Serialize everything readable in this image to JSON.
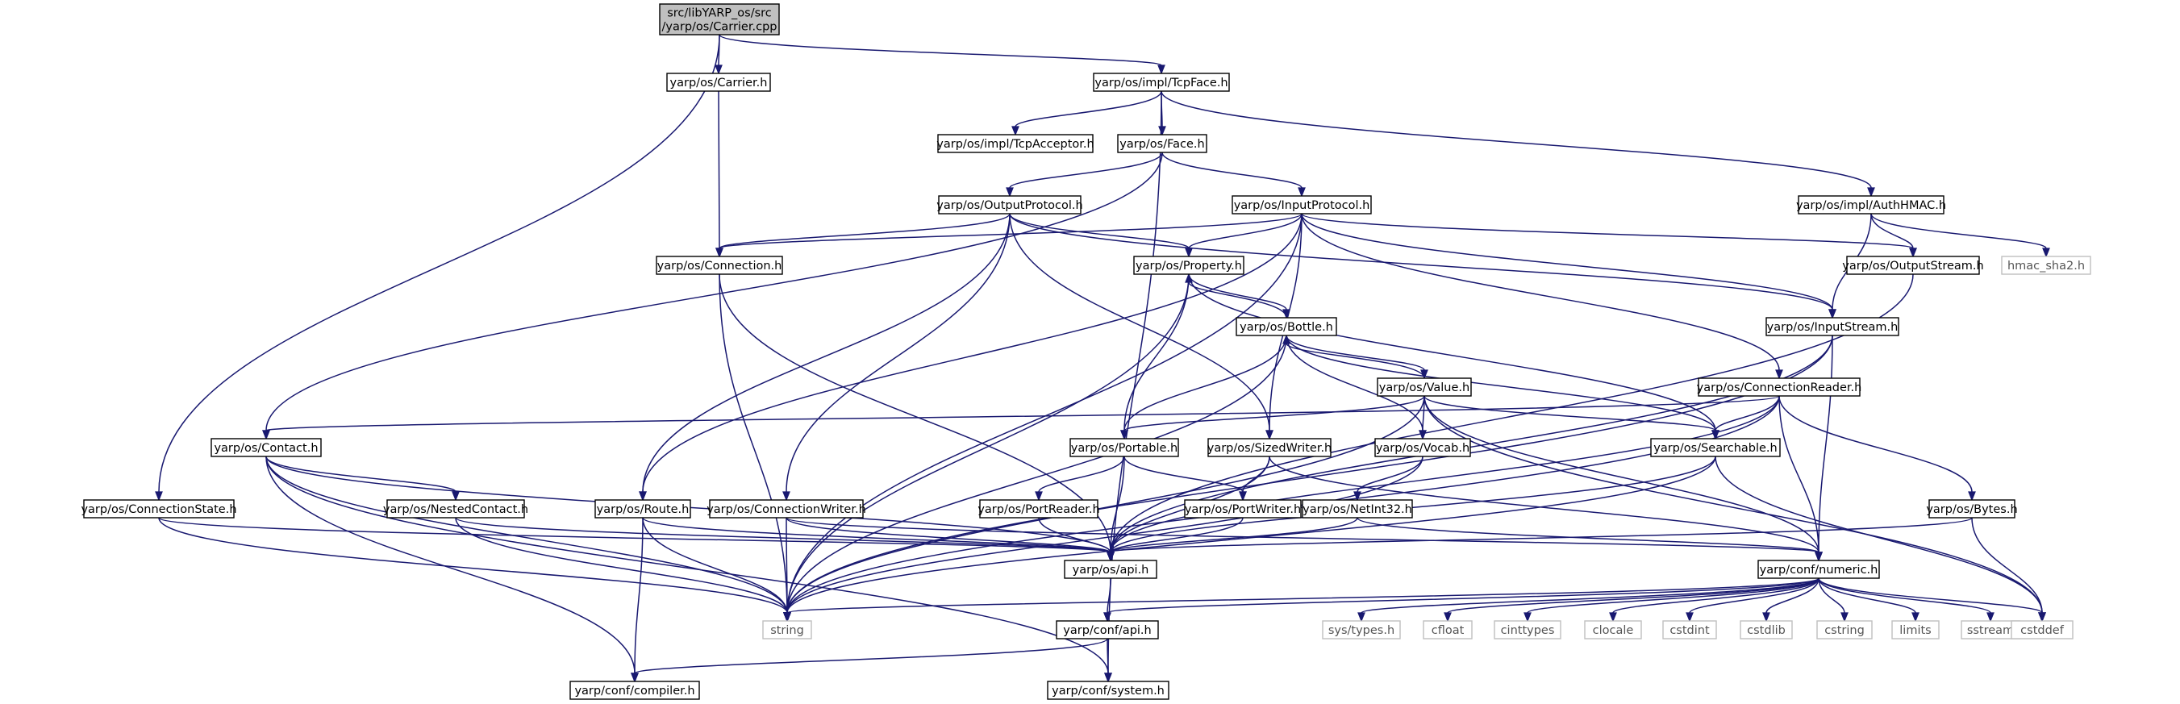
{
  "graph": {
    "nodes": [
      {
        "id": "root",
        "lines": [
          "src/libYARP_os/src",
          "/yarp/os/Carrier.cpp"
        ],
        "kind": "root"
      },
      {
        "id": "carrier_h",
        "lines": [
          "yarp/os/Carrier.h"
        ],
        "kind": "normal"
      },
      {
        "id": "tcpface",
        "lines": [
          "yarp/os/impl/TcpFace.h"
        ],
        "kind": "normal"
      },
      {
        "id": "tcpacceptor",
        "lines": [
          "yarp/os/impl/TcpAcceptor.h"
        ],
        "kind": "normal"
      },
      {
        "id": "face",
        "lines": [
          "yarp/os/Face.h"
        ],
        "kind": "normal"
      },
      {
        "id": "authhmac",
        "lines": [
          "yarp/os/impl/AuthHMAC.h"
        ],
        "kind": "normal"
      },
      {
        "id": "outputprotocol",
        "lines": [
          "yarp/os/OutputProtocol.h"
        ],
        "kind": "normal"
      },
      {
        "id": "inputprotocol",
        "lines": [
          "yarp/os/InputProtocol.h"
        ],
        "kind": "normal"
      },
      {
        "id": "connection",
        "lines": [
          "yarp/os/Connection.h"
        ],
        "kind": "normal"
      },
      {
        "id": "property",
        "lines": [
          "yarp/os/Property.h"
        ],
        "kind": "normal"
      },
      {
        "id": "outputstream",
        "lines": [
          "yarp/os/OutputStream.h"
        ],
        "kind": "normal"
      },
      {
        "id": "hmac",
        "lines": [
          "hmac_sha2.h"
        ],
        "kind": "ext"
      },
      {
        "id": "bottle",
        "lines": [
          "yarp/os/Bottle.h"
        ],
        "kind": "normal"
      },
      {
        "id": "inputstream",
        "lines": [
          "yarp/os/InputStream.h"
        ],
        "kind": "normal"
      },
      {
        "id": "value",
        "lines": [
          "yarp/os/Value.h"
        ],
        "kind": "normal"
      },
      {
        "id": "connreader",
        "lines": [
          "yarp/os/ConnectionReader.h"
        ],
        "kind": "normal"
      },
      {
        "id": "contact",
        "lines": [
          "yarp/os/Contact.h"
        ],
        "kind": "normal"
      },
      {
        "id": "portable",
        "lines": [
          "yarp/os/Portable.h"
        ],
        "kind": "normal"
      },
      {
        "id": "sizedwriter",
        "lines": [
          "yarp/os/SizedWriter.h"
        ],
        "kind": "normal"
      },
      {
        "id": "vocab",
        "lines": [
          "yarp/os/Vocab.h"
        ],
        "kind": "normal"
      },
      {
        "id": "searchable",
        "lines": [
          "yarp/os/Searchable.h"
        ],
        "kind": "normal"
      },
      {
        "id": "connstate",
        "lines": [
          "yarp/os/ConnectionState.h"
        ],
        "kind": "normal"
      },
      {
        "id": "nestedcontact",
        "lines": [
          "yarp/os/NestedContact.h"
        ],
        "kind": "normal"
      },
      {
        "id": "route",
        "lines": [
          "yarp/os/Route.h"
        ],
        "kind": "normal"
      },
      {
        "id": "connwriter",
        "lines": [
          "yarp/os/ConnectionWriter.h"
        ],
        "kind": "normal"
      },
      {
        "id": "portreader",
        "lines": [
          "yarp/os/PortReader.h"
        ],
        "kind": "normal"
      },
      {
        "id": "portwriter",
        "lines": [
          "yarp/os/PortWriter.h"
        ],
        "kind": "normal"
      },
      {
        "id": "netint32",
        "lines": [
          "yarp/os/NetInt32.h"
        ],
        "kind": "normal"
      },
      {
        "id": "bytes",
        "lines": [
          "yarp/os/Bytes.h"
        ],
        "kind": "normal"
      },
      {
        "id": "api_os",
        "lines": [
          "yarp/os/api.h"
        ],
        "kind": "normal"
      },
      {
        "id": "numeric",
        "lines": [
          "yarp/conf/numeric.h"
        ],
        "kind": "normal"
      },
      {
        "id": "string",
        "lines": [
          "string"
        ],
        "kind": "ext"
      },
      {
        "id": "conf_api",
        "lines": [
          "yarp/conf/api.h"
        ],
        "kind": "normal"
      },
      {
        "id": "systypes",
        "lines": [
          "sys/types.h"
        ],
        "kind": "ext"
      },
      {
        "id": "cfloat",
        "lines": [
          "cfloat"
        ],
        "kind": "ext"
      },
      {
        "id": "cinttypes",
        "lines": [
          "cinttypes"
        ],
        "kind": "ext"
      },
      {
        "id": "clocale",
        "lines": [
          "clocale"
        ],
        "kind": "ext"
      },
      {
        "id": "cstdint",
        "lines": [
          "cstdint"
        ],
        "kind": "ext"
      },
      {
        "id": "cstdlib",
        "lines": [
          "cstdlib"
        ],
        "kind": "ext"
      },
      {
        "id": "cstring",
        "lines": [
          "cstring"
        ],
        "kind": "ext"
      },
      {
        "id": "limits",
        "lines": [
          "limits"
        ],
        "kind": "ext"
      },
      {
        "id": "sstream",
        "lines": [
          "sstream"
        ],
        "kind": "ext"
      },
      {
        "id": "cstddef",
        "lines": [
          "cstddef"
        ],
        "kind": "ext"
      },
      {
        "id": "compiler",
        "lines": [
          "yarp/conf/compiler.h"
        ],
        "kind": "normal"
      },
      {
        "id": "system",
        "lines": [
          "yarp/conf/system.h"
        ],
        "kind": "normal"
      }
    ],
    "edges": [
      [
        "root",
        "carrier_h"
      ],
      [
        "root",
        "tcpface"
      ],
      [
        "root",
        "connstate"
      ],
      [
        "carrier_h",
        "connection"
      ],
      [
        "tcpface",
        "tcpacceptor"
      ],
      [
        "tcpface",
        "face"
      ],
      [
        "tcpface",
        "authhmac"
      ],
      [
        "tcpface",
        "system"
      ],
      [
        "face",
        "outputprotocol"
      ],
      [
        "face",
        "inputprotocol"
      ],
      [
        "face",
        "contact"
      ],
      [
        "outputprotocol",
        "connection"
      ],
      [
        "outputprotocol",
        "property"
      ],
      [
        "outputprotocol",
        "inputstream"
      ],
      [
        "outputprotocol",
        "sizedwriter"
      ],
      [
        "outputprotocol",
        "connwriter"
      ],
      [
        "outputprotocol",
        "route"
      ],
      [
        "inputprotocol",
        "connection"
      ],
      [
        "inputprotocol",
        "property"
      ],
      [
        "inputprotocol",
        "outputstream"
      ],
      [
        "inputprotocol",
        "inputstream"
      ],
      [
        "inputprotocol",
        "connreader"
      ],
      [
        "inputprotocol",
        "route"
      ],
      [
        "inputprotocol",
        "sizedwriter"
      ],
      [
        "inputprotocol",
        "string"
      ],
      [
        "authhmac",
        "outputstream"
      ],
      [
        "authhmac",
        "inputstream"
      ],
      [
        "authhmac",
        "hmac"
      ],
      [
        "connection",
        "api_os"
      ],
      [
        "connection",
        "string"
      ],
      [
        "property",
        "bottle"
      ],
      [
        "property",
        "portable"
      ],
      [
        "property",
        "searchable"
      ],
      [
        "property",
        "string"
      ],
      [
        "bottle",
        "property"
      ],
      [
        "bottle",
        "value"
      ],
      [
        "bottle",
        "portable"
      ],
      [
        "bottle",
        "searchable"
      ],
      [
        "bottle",
        "vocab"
      ],
      [
        "bottle",
        "string"
      ],
      [
        "value",
        "bottle"
      ],
      [
        "value",
        "portable"
      ],
      [
        "value",
        "searchable"
      ],
      [
        "value",
        "vocab"
      ],
      [
        "value",
        "numeric"
      ],
      [
        "value",
        "string"
      ],
      [
        "value",
        "cstddef"
      ],
      [
        "outputstream",
        "api_os"
      ],
      [
        "inputstream",
        "api_os"
      ],
      [
        "inputstream",
        "string"
      ],
      [
        "inputstream",
        "numeric"
      ],
      [
        "connreader",
        "contact"
      ],
      [
        "connreader",
        "searchable"
      ],
      [
        "connreader",
        "bytes"
      ],
      [
        "connreader",
        "api_os"
      ],
      [
        "connreader",
        "string"
      ],
      [
        "connreader",
        "numeric"
      ],
      [
        "contact",
        "nestedcontact"
      ],
      [
        "contact",
        "api_os"
      ],
      [
        "contact",
        "string"
      ],
      [
        "contact",
        "compiler"
      ],
      [
        "contact",
        "system"
      ],
      [
        "portable",
        "portreader"
      ],
      [
        "portable",
        "portwriter"
      ],
      [
        "portable",
        "api_os"
      ],
      [
        "sizedwriter",
        "portwriter"
      ],
      [
        "sizedwriter",
        "api_os"
      ],
      [
        "sizedwriter",
        "numeric"
      ],
      [
        "vocab",
        "netint32"
      ],
      [
        "vocab",
        "string"
      ],
      [
        "searchable",
        "api_os"
      ],
      [
        "searchable",
        "string"
      ],
      [
        "searchable",
        "cstddef"
      ],
      [
        "connstate",
        "api_os"
      ],
      [
        "connstate",
        "string"
      ],
      [
        "nestedcontact",
        "api_os"
      ],
      [
        "nestedcontact",
        "string"
      ],
      [
        "route",
        "api_os"
      ],
      [
        "route",
        "string"
      ],
      [
        "route",
        "compiler"
      ],
      [
        "connwriter",
        "api_os"
      ],
      [
        "connwriter",
        "numeric"
      ],
      [
        "connwriter",
        "string"
      ],
      [
        "portreader",
        "api_os"
      ],
      [
        "portwriter",
        "api_os"
      ],
      [
        "netint32",
        "api_os"
      ],
      [
        "netint32",
        "numeric"
      ],
      [
        "bytes",
        "api_os"
      ],
      [
        "bytes",
        "cstddef"
      ],
      [
        "api_os",
        "conf_api"
      ],
      [
        "numeric",
        "conf_api"
      ],
      [
        "numeric",
        "systypes"
      ],
      [
        "numeric",
        "cfloat"
      ],
      [
        "numeric",
        "cinttypes"
      ],
      [
        "numeric",
        "clocale"
      ],
      [
        "numeric",
        "cstdint"
      ],
      [
        "numeric",
        "cstdlib"
      ],
      [
        "numeric",
        "cstring"
      ],
      [
        "numeric",
        "limits"
      ],
      [
        "numeric",
        "sstream"
      ],
      [
        "numeric",
        "cstddef"
      ],
      [
        "numeric",
        "string"
      ],
      [
        "conf_api",
        "compiler"
      ],
      [
        "conf_api",
        "system"
      ]
    ]
  }
}
